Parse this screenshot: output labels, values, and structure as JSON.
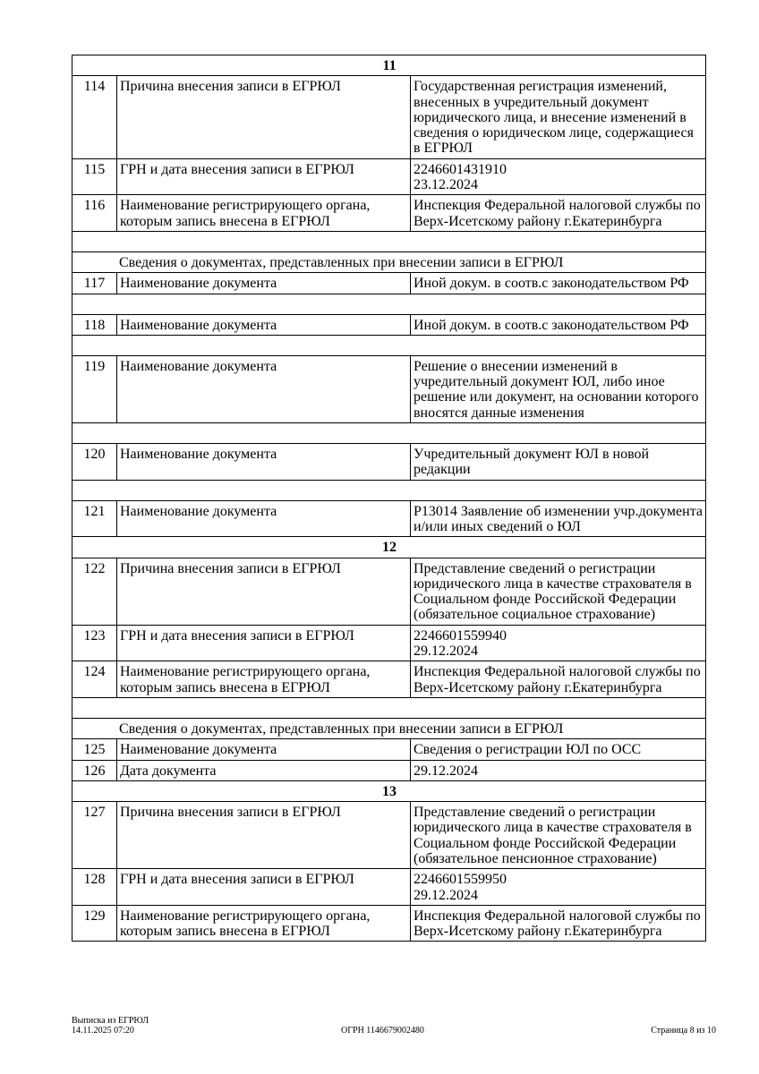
{
  "groups": [
    {
      "title": "11",
      "rows": [
        {
          "type": "row",
          "num": "114",
          "label": "Причина внесения записи в ЕГРЮЛ",
          "value": "Государственная регистрация изменений, внесенных в учредительный документ юридического лица, и внесение изменений в сведения о юридическом лице, содержащиеся в ЕГРЮЛ"
        },
        {
          "type": "row",
          "num": "115",
          "label": "ГРН и дата внесения записи в ЕГРЮЛ",
          "value": "2246601431910\n23.12.2024"
        },
        {
          "type": "row",
          "num": "116",
          "label": "Наименование регистрирующего органа, которым запись внесена в ЕГРЮЛ",
          "value": "Инспекция Федеральной налоговой службы по Верх-Исетскому району г.Екатеринбурга"
        },
        {
          "type": "blank"
        },
        {
          "type": "section",
          "text": "Сведения о документах, представленных при внесении записи в ЕГРЮЛ"
        },
        {
          "type": "row",
          "num": "117",
          "label": "Наименование документа",
          "value": "Иной докум. в соотв.с законодательством РФ"
        },
        {
          "type": "blank"
        },
        {
          "type": "row",
          "num": "118",
          "label": "Наименование документа",
          "value": "Иной докум. в соотв.с законодательством РФ"
        },
        {
          "type": "blank"
        },
        {
          "type": "row",
          "num": "119",
          "label": "Наименование документа",
          "value": "Решение о внесении изменений в учредительный документ ЮЛ, либо иное решение или документ, на основании которого вносятся данные изменения"
        },
        {
          "type": "blank"
        },
        {
          "type": "row",
          "num": "120",
          "label": "Наименование документа",
          "value": "Учредительный документ ЮЛ в новой редакции"
        },
        {
          "type": "blank"
        },
        {
          "type": "row",
          "num": "121",
          "label": "Наименование документа",
          "value": "Р13014 Заявление об изменении учр.документа и/или иных сведений о ЮЛ"
        }
      ]
    },
    {
      "title": "12",
      "rows": [
        {
          "type": "row",
          "num": "122",
          "label": "Причина внесения записи в ЕГРЮЛ",
          "value": "Представление сведений о регистрации юридического лица в качестве страхователя в Социальном фонде Российской Федерации (обязательное социальное страхование)"
        },
        {
          "type": "row",
          "num": "123",
          "label": "ГРН и дата внесения записи в ЕГРЮЛ",
          "value": "2246601559940\n29.12.2024"
        },
        {
          "type": "row",
          "num": "124",
          "label": "Наименование регистрирующего органа, которым запись внесена в ЕГРЮЛ",
          "value": "Инспекция Федеральной налоговой службы по Верх-Исетскому району г.Екатеринбурга"
        },
        {
          "type": "blank"
        },
        {
          "type": "section",
          "text": "Сведения о документах, представленных при внесении записи в ЕГРЮЛ"
        },
        {
          "type": "row",
          "num": "125",
          "label": "Наименование документа",
          "value": "Сведения о регистрации ЮЛ по ОСС"
        },
        {
          "type": "row",
          "num": "126",
          "label": "Дата документа",
          "value": "29.12.2024"
        }
      ]
    },
    {
      "title": "13",
      "rows": [
        {
          "type": "row",
          "num": "127",
          "label": "Причина внесения записи в ЕГРЮЛ",
          "value": "Представление сведений о регистрации юридического лица в качестве страхователя в Социальном фонде Российской Федерации (обязательное пенсионное страхование)"
        },
        {
          "type": "row",
          "num": "128",
          "label": "ГРН и дата внесения записи в ЕГРЮЛ",
          "value": "2246601559950\n29.12.2024"
        },
        {
          "type": "row",
          "num": "129",
          "label": "Наименование регистрирующего органа, которым запись внесена в ЕГРЮЛ",
          "value": "Инспекция Федеральной налоговой службы по Верх-Исетскому району г.Екатеринбурга"
        }
      ]
    }
  ],
  "footer": {
    "doc_title": "Выписка из ЕГРЮЛ",
    "datetime": "14.11.2025 07:20",
    "ogrn": "ОГРН 1146679002480",
    "page": "Страница 8 из 10"
  }
}
